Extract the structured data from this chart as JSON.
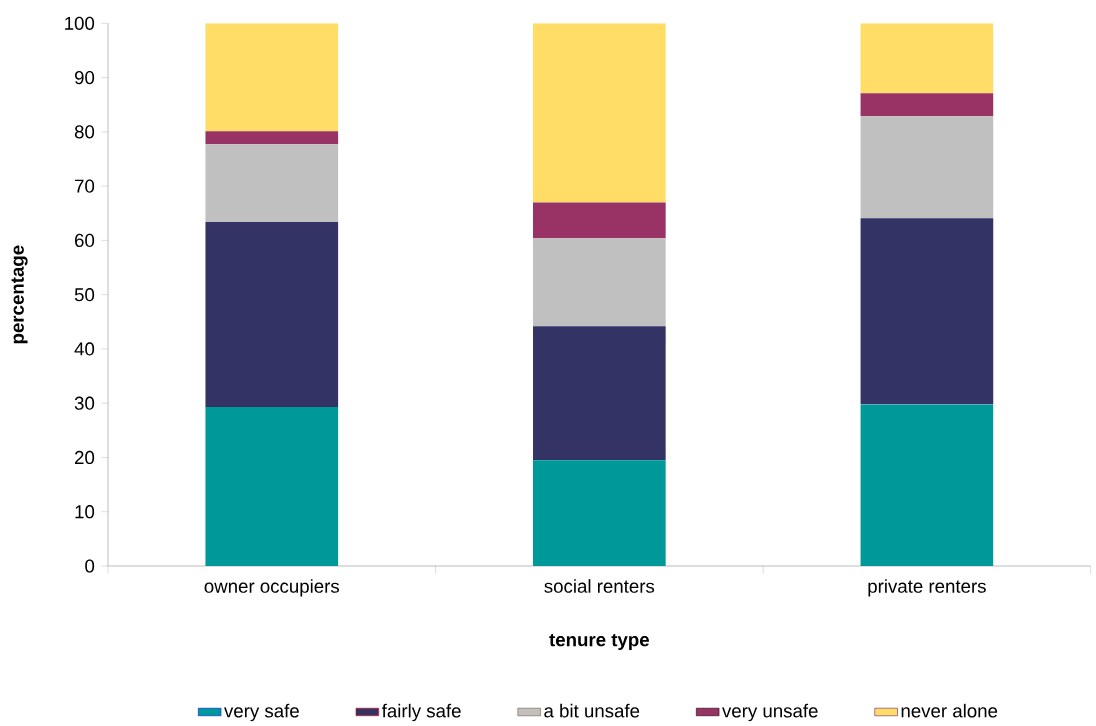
{
  "chart_data": {
    "type": "bar",
    "stacked": true,
    "xlabel": "tenure type",
    "ylabel": "percentage",
    "categories": [
      "owner occupiers",
      "social renters",
      "private renters"
    ],
    "series": [
      {
        "name": "very safe",
        "color": "#009999",
        "values": [
          29.3,
          19.5,
          29.8
        ]
      },
      {
        "name": "fairly safe",
        "color": "#333366",
        "values": [
          34.1,
          24.7,
          34.3
        ]
      },
      {
        "name": "a bit unsafe",
        "color": "#c0c0c0",
        "values": [
          14.3,
          16.2,
          18.8
        ]
      },
      {
        "name": "very unsafe",
        "color": "#993366",
        "values": [
          2.4,
          6.6,
          4.2
        ]
      },
      {
        "name": "never alone",
        "color": "#ffdd66",
        "values": [
          19.9,
          33.0,
          12.9
        ]
      }
    ],
    "ylim": [
      0,
      100
    ],
    "yticks": [
      0,
      10,
      20,
      30,
      40,
      50,
      60,
      70,
      80,
      90,
      100
    ],
    "grid": false,
    "legend": "bottom"
  }
}
